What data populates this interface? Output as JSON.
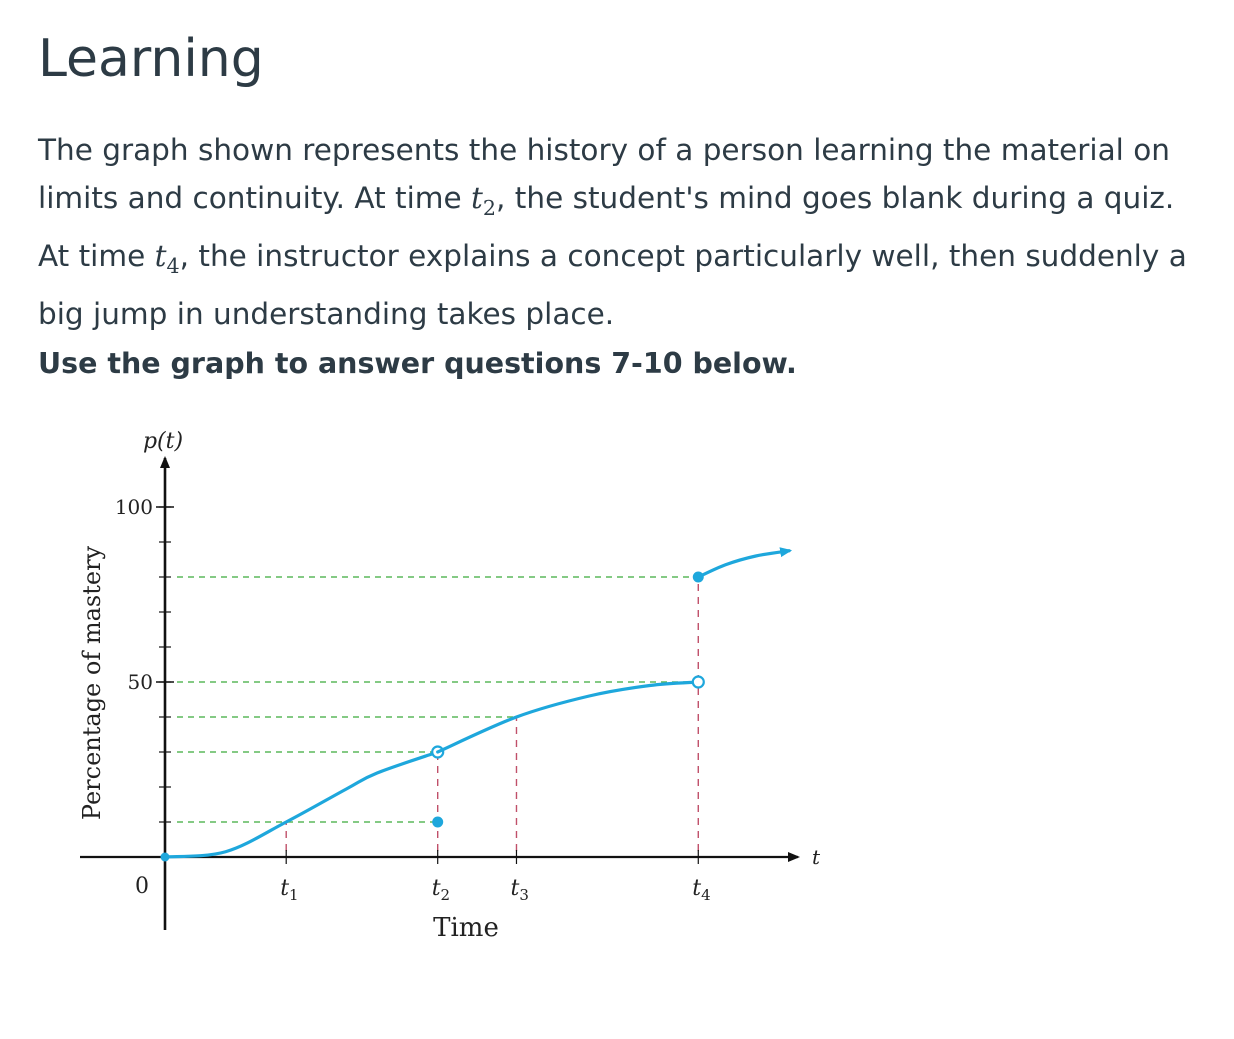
{
  "page": {
    "title": "Learning",
    "intro": {
      "part1": "The graph shown represents the history of a person learning the material on limits and continuity.  At time ",
      "t2_base": "t",
      "t2_sub": "2",
      "part2": ", the student's mind goes blank during a quiz.  At time ",
      "t4_base": "t",
      "t4_sub": "4",
      "part3": ", the instructor explains a concept particularly well, then suddenly a big jump in understanding takes place."
    },
    "instruction": "Use the graph to answer questions 7-10 below."
  },
  "chart_data": {
    "type": "line",
    "title": "",
    "ylabel": "Percentage of mastery",
    "y_axis_symbol": "p(t)",
    "xlabel": "Time",
    "x_axis_symbol": "t",
    "origin_label": "0",
    "yticks": [
      {
        "value": 50,
        "label": "50"
      },
      {
        "value": 100,
        "label": "100"
      }
    ],
    "ylim": [
      0,
      100
    ],
    "xlim": [
      0,
      21
    ],
    "x_ticks": [
      {
        "name": "t1",
        "base": "t",
        "sub": "1",
        "x": 4
      },
      {
        "name": "t2",
        "base": "t",
        "sub": "2",
        "x": 9
      },
      {
        "name": "t3",
        "base": "t",
        "sub": "3",
        "x": 11.6
      },
      {
        "name": "t4",
        "base": "t",
        "sub": "4",
        "x": 17.6
      }
    ],
    "series": [
      {
        "curve": [
          [
            0,
            0
          ],
          [
            2,
            1.5
          ],
          [
            4,
            10
          ],
          [
            6,
            19.5
          ],
          [
            7,
            24
          ],
          [
            9,
            30
          ]
        ],
        "end": "open"
      },
      {
        "curve": [
          [
            9,
            30
          ],
          [
            11.6,
            40
          ],
          [
            14,
            46
          ],
          [
            16,
            49
          ],
          [
            17.6,
            50
          ]
        ],
        "end": "open"
      },
      {
        "curve": [
          [
            17.6,
            80
          ],
          [
            18.5,
            83.5
          ],
          [
            19.5,
            86
          ],
          [
            20.6,
            87.5
          ]
        ],
        "end": "arrow"
      }
    ],
    "points": [
      {
        "x": 9,
        "y": 10,
        "style": "filled"
      },
      {
        "x": 17.6,
        "y": 80,
        "style": "filled"
      }
    ],
    "guides": {
      "horizontal": [
        {
          "y": 10,
          "to_x": 9
        },
        {
          "y": 30,
          "to_x": 9
        },
        {
          "y": 40,
          "to_x": 11.6
        },
        {
          "y": 50,
          "to_x": 17.6
        },
        {
          "y": 80,
          "to_x": 17.6
        }
      ],
      "vertical": [
        {
          "x": 4,
          "to_y": 10
        },
        {
          "x": 9,
          "to_y": 30
        },
        {
          "x": 11.6,
          "to_y": 40
        },
        {
          "x": 17.6,
          "to_y": 80
        }
      ]
    },
    "colors": {
      "curve": "#1ea7dc",
      "guide_horizontal": "#5cb85c",
      "guide_vertical": "#c0506a",
      "axes": "#111111"
    }
  }
}
